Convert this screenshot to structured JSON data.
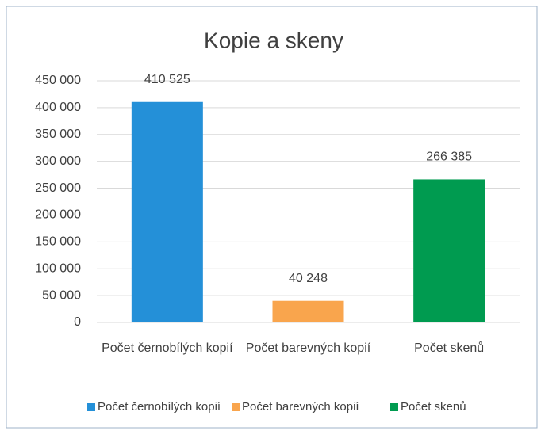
{
  "chart_data": {
    "type": "bar",
    "title": "Kopie a skeny",
    "categories": [
      "Počet černobílých kopií",
      "Počet barevných kopií",
      "Počet skenů"
    ],
    "values": [
      410525,
      40248,
      266385
    ],
    "value_labels": [
      "410 525",
      "40 248",
      "266 385"
    ],
    "colors": [
      "#2490d8",
      "#f9a54d",
      "#009b50"
    ],
    "ylim": [
      0,
      450000
    ],
    "yticks": [
      0,
      {
        "value": 50000,
        "label": "50 000"
      },
      {
        "value": 100000,
        "label": "100 000"
      },
      {
        "value": 150000,
        "label": "150 000"
      },
      {
        "value": 200000,
        "label": "200 000"
      },
      {
        "value": 250000,
        "label": "250 000"
      },
      {
        "value": 300000,
        "label": "300 000"
      },
      {
        "value": 350000,
        "label": "350 000"
      },
      {
        "value": 400000,
        "label": "400 000"
      },
      {
        "value": 450000,
        "label": "450 000"
      }
    ],
    "grid": true,
    "legend": "bottom"
  }
}
